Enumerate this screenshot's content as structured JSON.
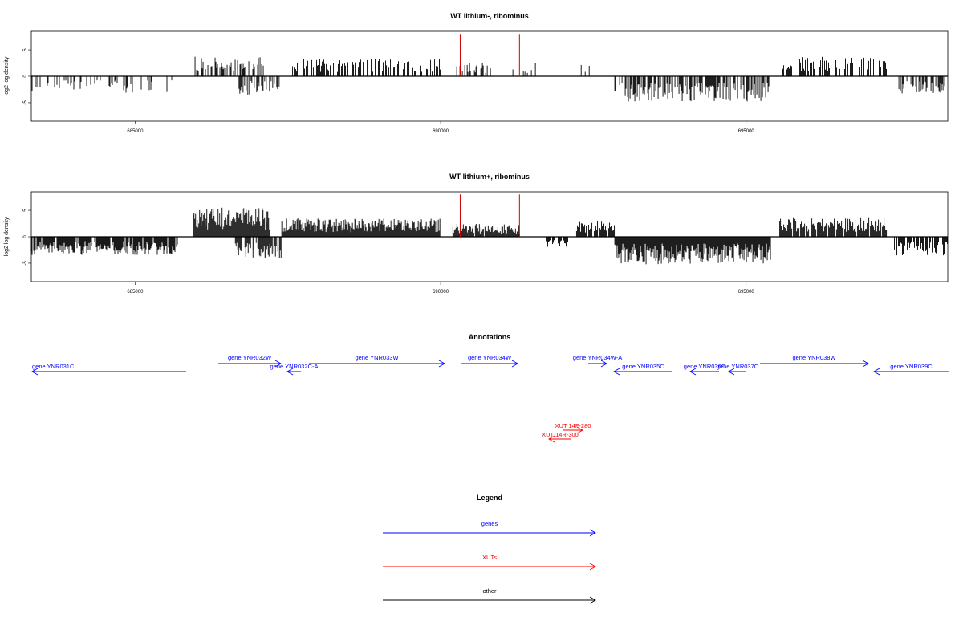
{
  "chart_data": [
    {
      "type": "bar",
      "title": "WT lithium-, ribominus",
      "ylabel": "log2 log density",
      "xlim": [
        683300,
        698300
      ],
      "ylim": [
        -8.5,
        8.5
      ],
      "x_ticks": [
        685000,
        690000,
        695000
      ],
      "x_tick_labels": [
        "685000",
        "690000",
        "695000"
      ],
      "y_ticks": [
        -5,
        0,
        5
      ],
      "y_tick_labels": [
        "-5",
        "0",
        "5"
      ],
      "baseline_range": [
        683300,
        698300
      ],
      "markers": [
        {
          "x": 690320,
          "y": 8,
          "color": "#cc0000"
        },
        {
          "x": 691290,
          "y": 8,
          "color": "#cc0000"
        }
      ],
      "regions": [
        {
          "start": 683300,
          "end": 685650,
          "sign": -1,
          "level": 2.2,
          "density": 0.28
        },
        {
          "start": 685980,
          "end": 687100,
          "sign": 1,
          "level": 2.6,
          "density": 0.55
        },
        {
          "start": 686700,
          "end": 687400,
          "sign": -1,
          "level": 2.5,
          "density": 0.55
        },
        {
          "start": 687550,
          "end": 690000,
          "sign": 1,
          "level": 2.3,
          "density": 0.45
        },
        {
          "start": 690250,
          "end": 691600,
          "sign": 1,
          "level": 1.8,
          "density": 0.25
        },
        {
          "start": 692300,
          "end": 692450,
          "sign": 1,
          "level": 1.5,
          "density": 0.3
        },
        {
          "start": 692850,
          "end": 695400,
          "sign": -1,
          "level": 3.3,
          "density": 0.6
        },
        {
          "start": 695600,
          "end": 697300,
          "sign": 1,
          "level": 2.6,
          "density": 0.55
        },
        {
          "start": 697500,
          "end": 698300,
          "sign": -1,
          "level": 2.4,
          "density": 0.45
        }
      ]
    },
    {
      "type": "bar",
      "title": "WT lithium+, ribominus",
      "ylabel": "log2 log density",
      "xlim": [
        683300,
        698300
      ],
      "ylim": [
        -8.5,
        8.5
      ],
      "x_ticks": [
        685000,
        690000,
        695000
      ],
      "x_tick_labels": [
        "685000",
        "690000",
        "695000"
      ],
      "y_ticks": [
        -5,
        0,
        5
      ],
      "y_tick_labels": [
        "-5",
        "0",
        "5"
      ],
      "baseline_range": [
        683300,
        698300
      ],
      "markers": [
        {
          "x": 690320,
          "y": 8,
          "color": "#cc0000"
        },
        {
          "x": 691290,
          "y": 8,
          "color": "#cc0000"
        }
      ],
      "regions": [
        {
          "start": 683300,
          "end": 685700,
          "sign": -1,
          "level": 2.4,
          "density": 0.9
        },
        {
          "start": 685950,
          "end": 687200,
          "sign": 1,
          "level": 3.8,
          "density": 1.0
        },
        {
          "start": 686600,
          "end": 687400,
          "sign": -1,
          "level": 2.8,
          "density": 0.7
        },
        {
          "start": 687400,
          "end": 690000,
          "sign": 1,
          "level": 2.4,
          "density": 1.0
        },
        {
          "start": 690200,
          "end": 691300,
          "sign": 1,
          "level": 1.7,
          "density": 0.9
        },
        {
          "start": 691700,
          "end": 692100,
          "sign": -1,
          "level": 1.4,
          "density": 0.6
        },
        {
          "start": 692200,
          "end": 692850,
          "sign": 1,
          "level": 2.0,
          "density": 0.8
        },
        {
          "start": 692850,
          "end": 695400,
          "sign": -1,
          "level": 3.6,
          "density": 1.0
        },
        {
          "start": 695550,
          "end": 697300,
          "sign": 1,
          "level": 2.5,
          "density": 0.9
        },
        {
          "start": 697400,
          "end": 698300,
          "sign": -1,
          "level": 2.6,
          "density": 0.8
        }
      ]
    },
    {
      "type": "annotation_track",
      "title": "Annotations",
      "features": [
        {
          "label": "gene YNR031C",
          "kind": "gene",
          "strand": "-",
          "x0": 40,
          "x1": 232,
          "row": 2
        },
        {
          "label": "gene YNR032W",
          "kind": "gene",
          "strand": "+",
          "x0": 272,
          "x1": 350,
          "row": 1
        },
        {
          "label": "gene YNR032C-A",
          "kind": "gene",
          "strand": "-",
          "x0": 358,
          "x1": 375,
          "row": 2
        },
        {
          "label": "gene YNR033W",
          "kind": "gene",
          "strand": "+",
          "x0": 385,
          "x1": 554,
          "row": 1
        },
        {
          "label": "gene YNR034W",
          "kind": "gene",
          "strand": "+",
          "x0": 575,
          "x1": 645,
          "row": 1
        },
        {
          "label": "gene YNR034W-A",
          "kind": "gene",
          "strand": "+",
          "x0": 733,
          "x1": 756,
          "row": 1
        },
        {
          "label": "gene YNR035C",
          "kind": "gene",
          "strand": "-",
          "x0": 765,
          "x1": 838,
          "row": 2
        },
        {
          "label": "gene YNR036C",
          "kind": "gene",
          "strand": "-",
          "x0": 860,
          "x1": 896,
          "row": 2
        },
        {
          "label": "gene YNR037C",
          "kind": "gene",
          "strand": "-",
          "x0": 908,
          "x1": 930,
          "row": 2
        },
        {
          "label": "gene YNR038W",
          "kind": "gene",
          "strand": "+",
          "x0": 947,
          "x1": 1082,
          "row": 1
        },
        {
          "label": "gene YNR039C",
          "kind": "gene",
          "strand": "-",
          "x0": 1089,
          "x1": 1182,
          "row": 2
        },
        {
          "label": "XUT 14F-280",
          "kind": "XUT",
          "strand": "+",
          "x0": 702,
          "x1": 726,
          "row": 3
        },
        {
          "label": "XUT 14R-300",
          "kind": "XUT",
          "strand": "-",
          "x0": 684,
          "x1": 712,
          "row": 4
        }
      ]
    },
    {
      "type": "legend",
      "title": "Legend",
      "entries": [
        {
          "label": "genes",
          "color": "#0000ff"
        },
        {
          "label": "XUTs",
          "color": "#ff0000"
        },
        {
          "label": "other",
          "color": "#000000"
        }
      ]
    }
  ]
}
